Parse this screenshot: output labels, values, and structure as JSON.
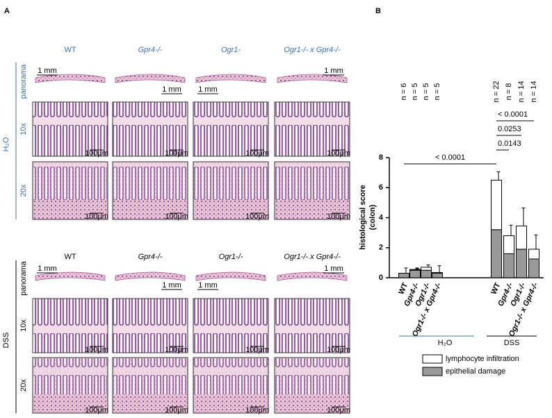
{
  "panel_a": {
    "label": "A",
    "scale_panorama": "1 mm",
    "scale_micro": "100μm",
    "conditions": [
      {
        "name": "H₂O",
        "columns": [
          "WT",
          "Gpr4-/-",
          "Ogr1-",
          "Ogr1-/- x Gpr4-/-"
        ],
        "rows": [
          "panorama",
          "10x",
          "20x"
        ]
      },
      {
        "name": "DSS",
        "columns": [
          "WT",
          "Gpr4-/-",
          "Ogr1-/-",
          "Ogr1-/- x Gpr4-/-"
        ],
        "rows": [
          "panorama",
          "10x",
          "20x"
        ]
      }
    ]
  },
  "chart_data": {
    "type": "bar",
    "label": "B",
    "stacked": true,
    "ylabel": [
      "histological score",
      "(colon)"
    ],
    "categories": [
      "WT",
      "Gpr4-/-",
      "Ogr1-/-",
      "Ogr1-/- x Gpr4-/-",
      "WT",
      "Gpr4-/-",
      "Ogr1-/-",
      "Ogr1-/- x Gpr4-/-"
    ],
    "groups": [
      "H₂O",
      "DSS"
    ],
    "n_labels": [
      "n = 6",
      "n = 5",
      "n = 5",
      "n = 5",
      "n = 22",
      "n = 8",
      "n = 14",
      "n = 14"
    ],
    "series": [
      {
        "name": "epithelial damage",
        "color": "#999999",
        "values": [
          0.3,
          0.5,
          0.5,
          0.3,
          3.2,
          1.6,
          1.9,
          1.25
        ],
        "errors": [
          0,
          0.1,
          0.1,
          0,
          0.65,
          0.65,
          0.8,
          0.5
        ]
      },
      {
        "name": "lymphocyte infiltration",
        "color": "#ffffff",
        "values": [
          0,
          0.05,
          0.2,
          0.05,
          3.3,
          1.2,
          1.55,
          0.65
        ],
        "errors": [
          0.35,
          0.1,
          0.15,
          0.45,
          0.55,
          0.7,
          1.2,
          0.95
        ]
      }
    ],
    "comparisons": [
      "< 0.0001",
      "0.0143",
      "0.0253",
      "< 0.0001"
    ],
    "ylim": [
      0,
      8
    ],
    "yticks": [
      0,
      2,
      4,
      6,
      8
    ]
  }
}
